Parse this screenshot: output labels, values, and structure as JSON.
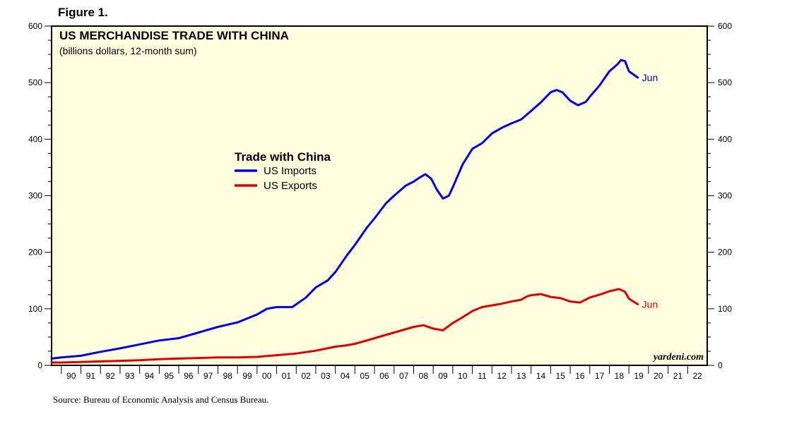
{
  "figure_label": "Figure 1.",
  "source": "Source: Bureau of Economic Analysis and Census Bureau.",
  "watermark": "yardeni.com",
  "chart_data": {
    "type": "line",
    "title": "US MERCHANDISE TRADE WITH CHINA",
    "subtitle": "(billions dollars, 12-month sum)",
    "legend_title": "Trade with China",
    "legend_position": "center-left",
    "ylim": [
      0,
      600
    ],
    "y_ticks": [
      0,
      100,
      200,
      300,
      400,
      500,
      600
    ],
    "y_tick_labels": [
      "0",
      "100",
      "200",
      "300",
      "400",
      "500",
      "600"
    ],
    "xlim": [
      1989.5,
      2023
    ],
    "x_tick_labels": [
      "90",
      "91",
      "92",
      "93",
      "94",
      "95",
      "96",
      "97",
      "98",
      "99",
      "00",
      "01",
      "02",
      "03",
      "04",
      "05",
      "06",
      "07",
      "08",
      "09",
      "10",
      "11",
      "12",
      "13",
      "14",
      "15",
      "16",
      "17",
      "18",
      "19",
      "20",
      "21",
      "22"
    ],
    "grid": false,
    "plot_background": "#ffffe0",
    "series": [
      {
        "name": "US Imports",
        "color": "#0000e0",
        "end_label": "Jun",
        "points": [
          [
            1989.5,
            12
          ],
          [
            1990.0,
            14
          ],
          [
            1991.0,
            17
          ],
          [
            1992.0,
            24
          ],
          [
            1993.0,
            30
          ],
          [
            1994.0,
            37
          ],
          [
            1995.0,
            44
          ],
          [
            1996.0,
            48
          ],
          [
            1997.0,
            58
          ],
          [
            1998.0,
            68
          ],
          [
            1999.0,
            76
          ],
          [
            2000.0,
            90
          ],
          [
            2000.5,
            100
          ],
          [
            2001.0,
            103
          ],
          [
            2001.8,
            103
          ],
          [
            2002.5,
            120
          ],
          [
            2003.0,
            138
          ],
          [
            2003.6,
            150
          ],
          [
            2004.0,
            165
          ],
          [
            2004.6,
            195
          ],
          [
            2005.0,
            213
          ],
          [
            2005.6,
            243
          ],
          [
            2006.0,
            260
          ],
          [
            2006.6,
            287
          ],
          [
            2007.0,
            300
          ],
          [
            2007.6,
            318
          ],
          [
            2008.0,
            325
          ],
          [
            2008.3,
            332
          ],
          [
            2008.6,
            338
          ],
          [
            2008.9,
            330
          ],
          [
            2009.2,
            310
          ],
          [
            2009.5,
            295
          ],
          [
            2009.8,
            300
          ],
          [
            2010.0,
            315
          ],
          [
            2010.5,
            355
          ],
          [
            2011.0,
            383
          ],
          [
            2011.5,
            393
          ],
          [
            2012.0,
            410
          ],
          [
            2012.5,
            420
          ],
          [
            2013.0,
            428
          ],
          [
            2013.5,
            435
          ],
          [
            2014.0,
            450
          ],
          [
            2014.5,
            465
          ],
          [
            2015.0,
            483
          ],
          [
            2015.3,
            487
          ],
          [
            2015.6,
            483
          ],
          [
            2016.0,
            468
          ],
          [
            2016.4,
            460
          ],
          [
            2016.8,
            466
          ],
          [
            2017.0,
            475
          ],
          [
            2017.5,
            495
          ],
          [
            2018.0,
            520
          ],
          [
            2018.4,
            532
          ],
          [
            2018.6,
            540
          ],
          [
            2018.8,
            538
          ],
          [
            2019.0,
            520
          ],
          [
            2019.45,
            509
          ]
        ]
      },
      {
        "name": "US Exports",
        "color": "#e00000",
        "end_label": "Jun",
        "points": [
          [
            1989.5,
            5
          ],
          [
            1990.0,
            5
          ],
          [
            1991.0,
            6
          ],
          [
            1992.0,
            7
          ],
          [
            1993.0,
            8
          ],
          [
            1994.0,
            9
          ],
          [
            1995.0,
            11
          ],
          [
            1996.0,
            12
          ],
          [
            1997.0,
            13
          ],
          [
            1998.0,
            14
          ],
          [
            1999.0,
            14
          ],
          [
            2000.0,
            15
          ],
          [
            2001.0,
            18
          ],
          [
            2002.0,
            21
          ],
          [
            2003.0,
            26
          ],
          [
            2004.0,
            33
          ],
          [
            2004.5,
            35
          ],
          [
            2005.0,
            38
          ],
          [
            2006.0,
            48
          ],
          [
            2007.0,
            58
          ],
          [
            2008.0,
            68
          ],
          [
            2008.5,
            71
          ],
          [
            2009.0,
            65
          ],
          [
            2009.5,
            62
          ],
          [
            2010.0,
            75
          ],
          [
            2010.5,
            85
          ],
          [
            2011.0,
            96
          ],
          [
            2011.5,
            103
          ],
          [
            2012.0,
            106
          ],
          [
            2012.5,
            109
          ],
          [
            2013.0,
            113
          ],
          [
            2013.5,
            116
          ],
          [
            2013.8,
            122
          ],
          [
            2014.0,
            124
          ],
          [
            2014.5,
            126
          ],
          [
            2015.0,
            121
          ],
          [
            2015.5,
            119
          ],
          [
            2016.0,
            113
          ],
          [
            2016.5,
            111
          ],
          [
            2017.0,
            120
          ],
          [
            2017.5,
            125
          ],
          [
            2018.0,
            131
          ],
          [
            2018.5,
            135
          ],
          [
            2018.8,
            130
          ],
          [
            2019.0,
            118
          ],
          [
            2019.45,
            108
          ]
        ]
      }
    ]
  }
}
